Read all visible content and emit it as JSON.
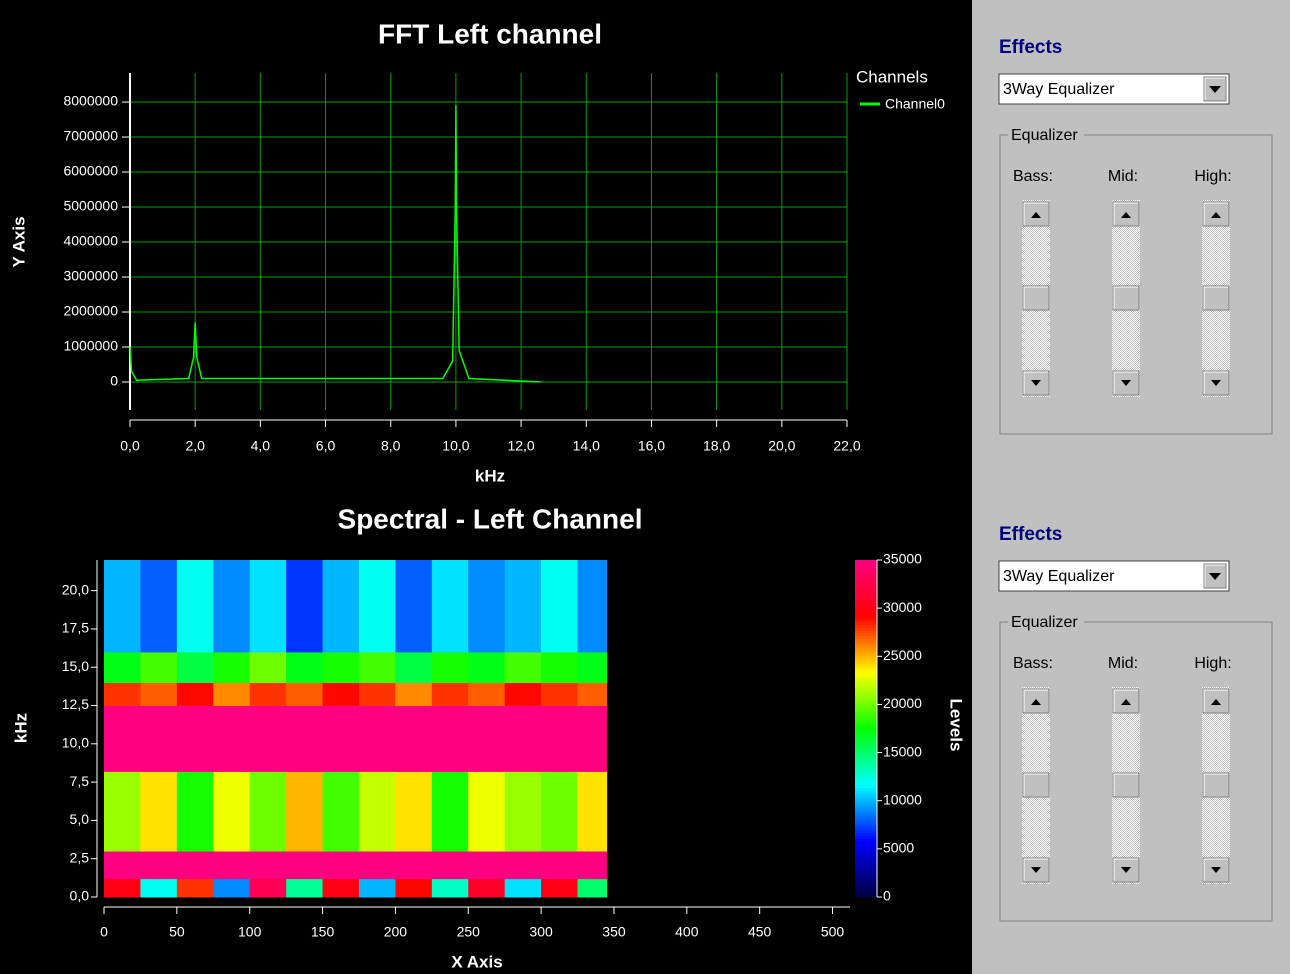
{
  "chart_data": [
    {
      "type": "line",
      "title": "FFT Left channel",
      "x_label": "kHz",
      "y_label": "Y Axis",
      "legend_title": "Channels",
      "x": [
        0,
        0.05,
        0.2,
        1.8,
        1.95,
        2.0,
        2.05,
        2.2,
        9.6,
        9.9,
        9.98,
        10.0,
        10.02,
        10.1,
        10.4,
        12.6
      ],
      "series": [
        {
          "name": "Channel0",
          "color": "#00ff00",
          "values": [
            1000000,
            300000,
            50000,
            100000,
            700000,
            1700000,
            700000,
            100000,
            100000,
            600000,
            4900000,
            7900000,
            4900000,
            900000,
            100000,
            0
          ]
        }
      ],
      "xlim": [
        0,
        22
      ],
      "ylim": [
        -800000,
        8830000
      ],
      "xticks": [
        {
          "value": 0,
          "label": "0,0"
        },
        {
          "value": 2,
          "label": "2,0"
        },
        {
          "value": 4,
          "label": "4,0"
        },
        {
          "value": 6,
          "label": "6,0"
        },
        {
          "value": 8,
          "label": "8,0"
        },
        {
          "value": 10,
          "label": "10,0"
        },
        {
          "value": 12,
          "label": "12,0"
        },
        {
          "value": 14,
          "label": "14,0"
        },
        {
          "value": 16,
          "label": "16,0"
        },
        {
          "value": 18,
          "label": "18,0"
        },
        {
          "value": 20,
          "label": "20,0"
        },
        {
          "value": 22,
          "label": "22,0"
        }
      ],
      "yticks": [
        0,
        1000000,
        2000000,
        3000000,
        4000000,
        5000000,
        6000000,
        7000000,
        8000000
      ],
      "grid": true,
      "grid_color": "#00a000"
    },
    {
      "type": "heatmap",
      "title": "Spectral - Left Channel",
      "x_label": "X Axis",
      "y_label": "kHz",
      "colorbar_label": "Levels",
      "x_bins": [
        0,
        25,
        50,
        75,
        100,
        125,
        150,
        175,
        200,
        225,
        250,
        275,
        300,
        325,
        345
      ],
      "y_bins": [
        0,
        1.2,
        3,
        8.2,
        12.5,
        14,
        16,
        22
      ],
      "z": [
        [
          30000,
          12000,
          28000,
          9000,
          33000,
          14000,
          30000,
          10000,
          29000,
          13000,
          31000,
          11000,
          30000,
          15000
        ],
        [
          35000,
          35000,
          35000,
          35000,
          35000,
          35000,
          35000,
          35000,
          35000,
          35000,
          35000,
          35000,
          35000,
          35000
        ],
        [
          21000,
          24000,
          18000,
          23000,
          20000,
          25000,
          19000,
          22000,
          24000,
          18000,
          23000,
          21000,
          20000,
          24000
        ],
        [
          35000,
          35000,
          35000,
          35000,
          35000,
          35000,
          35000,
          35000,
          35000,
          35000,
          35000,
          35000,
          35000,
          35000
        ],
        [
          28000,
          27000,
          29000,
          26000,
          28000,
          27000,
          29000,
          28000,
          26000,
          28000,
          27000,
          29000,
          28000,
          27000
        ],
        [
          17000,
          19000,
          16000,
          18000,
          20000,
          17000,
          18000,
          19000,
          16000,
          18000,
          17000,
          19000,
          18000,
          17000
        ],
        [
          10000,
          8000,
          12000,
          9000,
          11000,
          7000,
          10000,
          12000,
          8000,
          11000,
          9000,
          10000,
          12000,
          9000
        ]
      ],
      "colorscale": [
        "#000040",
        "#0000ff",
        "#00ffff",
        "#00ff00",
        "#ffff00",
        "#ff0000",
        "#ff0080"
      ],
      "xlim": [
        0,
        512
      ],
      "ylim": [
        0,
        22
      ],
      "zlim": [
        0,
        35000
      ],
      "xticks": [
        0,
        50,
        100,
        150,
        200,
        250,
        300,
        350,
        400,
        450,
        500
      ],
      "yticks": [
        {
          "value": 0,
          "label": "0,0"
        },
        {
          "value": 2.5,
          "label": "2,5"
        },
        {
          "value": 5,
          "label": "5,0"
        },
        {
          "value": 7.5,
          "label": "7,5"
        },
        {
          "value": 10,
          "label": "10,0"
        },
        {
          "value": 12.5,
          "label": "12,5"
        },
        {
          "value": 15,
          "label": "15,0"
        },
        {
          "value": 17.5,
          "label": "17,5"
        },
        {
          "value": 20,
          "label": "20,0"
        }
      ],
      "zticks": [
        0,
        5000,
        10000,
        15000,
        20000,
        25000,
        30000,
        35000
      ]
    }
  ],
  "panels": [
    {
      "title": "Effects",
      "select": "3Way Equalizer",
      "group": "Equalizer",
      "sliders": [
        "Bass:",
        "Mid:",
        "High:"
      ]
    },
    {
      "title": "Effects",
      "select": "3Way Equalizer",
      "group": "Equalizer",
      "sliders": [
        "Bass:",
        "Mid:",
        "High:"
      ]
    }
  ]
}
